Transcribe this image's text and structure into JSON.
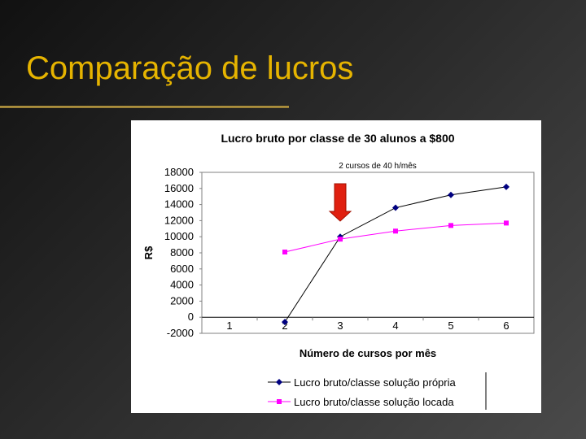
{
  "slide": {
    "title": "Comparação de lucros"
  },
  "chart_data": {
    "type": "line",
    "title": "Lucro bruto por classe de 30 alunos a $800",
    "annotation": "2 cursos de 40 h/mês",
    "xlabel": "Número de cursos por mês",
    "ylabel": "R$",
    "categories": [
      "1",
      "2",
      "3",
      "4",
      "5",
      "6"
    ],
    "ylim": [
      -2000,
      18000
    ],
    "yticks": [
      "18000",
      "16000",
      "14000",
      "12000",
      "10000",
      "8000",
      "6000",
      "4000",
      "2000",
      "0",
      "-2000"
    ],
    "grid": false,
    "legend_position": "bottom",
    "series": [
      {
        "name": "Lucro bruto/classe solução própria",
        "color": "#000080",
        "marker": "diamond",
        "values": [
          null,
          -600,
          10000,
          13600,
          15200,
          16200
        ]
      },
      {
        "name": "Lucro bruto/classe solução locada",
        "color": "#ff00ff",
        "marker": "square",
        "values": [
          null,
          8100,
          9700,
          10700,
          11400,
          11700
        ]
      }
    ],
    "marker_arrow": {
      "category": "3",
      "color": "#e02010"
    }
  }
}
